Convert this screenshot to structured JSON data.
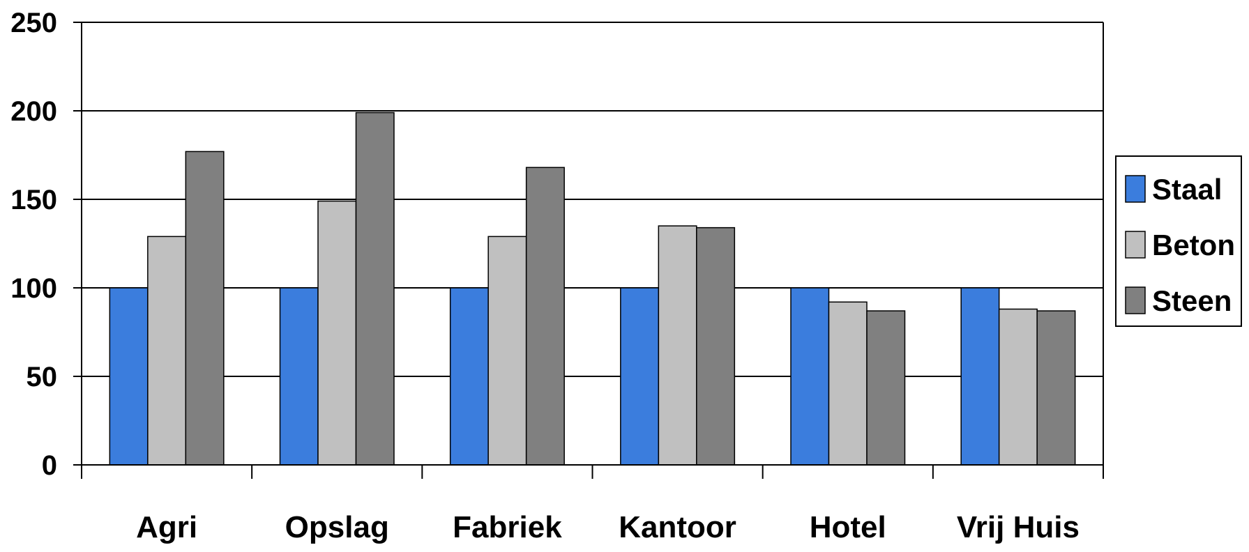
{
  "chart_data": {
    "type": "bar",
    "categories": [
      "Agri",
      "Opslag",
      "Fabriek",
      "Kantoor",
      "Hotel",
      "Vrij Huis"
    ],
    "series": [
      {
        "name": "Staal",
        "values": [
          100,
          100,
          100,
          100,
          100,
          100
        ],
        "color": "#3B7DDD"
      },
      {
        "name": "Beton",
        "values": [
          129,
          149,
          129,
          135,
          92,
          88
        ],
        "color": "#C0C0C0"
      },
      {
        "name": "Steen",
        "values": [
          177,
          199,
          168,
          134,
          87,
          87
        ],
        "color": "#808080"
      }
    ],
    "yticks": [
      "0",
      "50",
      "100",
      "150",
      "200",
      "250"
    ],
    "ylim": [
      0,
      250
    ],
    "grid": true,
    "legend_position": "right"
  }
}
